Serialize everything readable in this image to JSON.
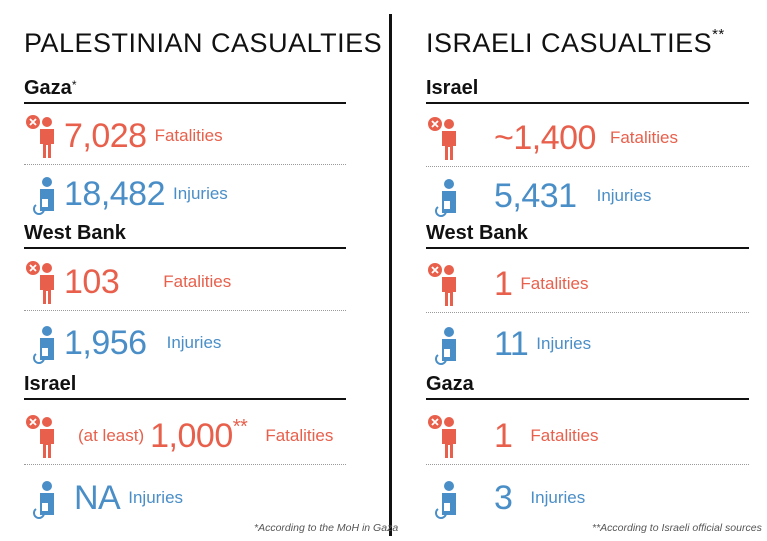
{
  "colors": {
    "fatalities": "#e8604c",
    "injuries": "#4a8ec7",
    "rule": "#111111"
  },
  "left": {
    "title": "PALESTINIAN CASUALTIES",
    "footnote": "*According to the MoH in Gaza",
    "regions": [
      {
        "name": "Gaza",
        "mark": "*",
        "fatalities": {
          "prefix": "",
          "value": "7,028",
          "mark": "",
          "label": "Fatalities"
        },
        "injuries": {
          "value": "18,482",
          "label": "Injuries"
        }
      },
      {
        "name": "West Bank",
        "mark": "",
        "fatalities": {
          "prefix": "",
          "value": "103",
          "mark": "",
          "label": "Fatalities"
        },
        "injuries": {
          "value": "1,956",
          "label": "Injuries"
        }
      },
      {
        "name": "Israel",
        "mark": "",
        "fatalities": {
          "prefix": "(at least)",
          "value": "1,000",
          "mark": "**",
          "label": "Fatalities"
        },
        "injuries": {
          "value": "NA",
          "label": "Injuries"
        }
      }
    ]
  },
  "right": {
    "title": "ISRAELI CASUALTIES",
    "title_mark": "**",
    "footnote": "**According to Israeli official sources",
    "regions": [
      {
        "name": "Israel",
        "fatalities": {
          "value": "~1,400",
          "label": "Fatalities"
        },
        "injuries": {
          "value": "5,431",
          "label": "Injuries"
        }
      },
      {
        "name": "West Bank",
        "fatalities": {
          "value": "1",
          "label": "Fatalities"
        },
        "injuries": {
          "value": "11",
          "label": "Injuries"
        }
      },
      {
        "name": "Gaza",
        "fatalities": {
          "value": "1",
          "label": "Fatalities"
        },
        "injuries": {
          "value": "3",
          "label": "Injuries"
        }
      }
    ]
  },
  "icons": {
    "fatalities": "person-fatality-icon",
    "injuries": "person-injured-icon"
  }
}
